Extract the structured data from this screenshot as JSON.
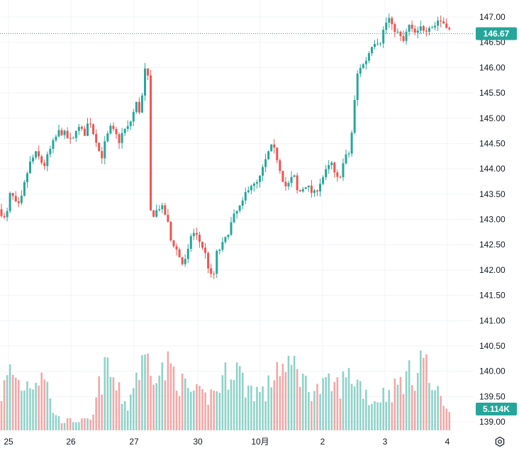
{
  "chart_data": {
    "type": "candlestick",
    "y_axis": {
      "ticks": [
        "147.00",
        "146.50",
        "146.00",
        "145.50",
        "145.00",
        "144.50",
        "144.00",
        "143.50",
        "143.00",
        "142.50",
        "142.00",
        "141.50",
        "141.00",
        "140.50",
        "140.00",
        "139.50",
        "139.00"
      ],
      "range": [
        138.92,
        147.25
      ]
    },
    "x_axis": {
      "ticks": [
        "25",
        "26",
        "27",
        "30",
        "10月",
        "2",
        "3",
        "4"
      ]
    },
    "last_price": {
      "label": "146.67",
      "value": 146.67,
      "color": "#26a69a"
    },
    "last_volume": {
      "label": "5.114K",
      "color": "#26a69a"
    },
    "colors": {
      "up": "#26a69a",
      "down": "#ef5350",
      "up_volume": "#8fd2c9",
      "down_volume": "#f3a7a6",
      "grid": "#f0f3fa"
    },
    "price_path": [
      [
        0,
        143.2
      ],
      [
        8,
        142.95
      ],
      [
        15,
        143.55
      ],
      [
        22,
        143.3
      ],
      [
        28,
        143.25
      ],
      [
        36,
        143.8
      ],
      [
        42,
        144.1
      ],
      [
        50,
        144.3
      ],
      [
        56,
        144.2
      ],
      [
        62,
        144.05
      ],
      [
        70,
        144.35
      ],
      [
        78,
        144.6
      ],
      [
        84,
        144.75
      ],
      [
        90,
        144.7
      ],
      [
        96,
        144.6
      ],
      [
        102,
        144.5
      ],
      [
        108,
        144.85
      ],
      [
        114,
        144.75
      ],
      [
        120,
        144.7
      ],
      [
        126,
        145.0
      ],
      [
        132,
        144.7
      ],
      [
        138,
        144.5
      ],
      [
        142,
        144.15
      ],
      [
        146,
        144.4
      ],
      [
        150,
        144.6
      ],
      [
        156,
        144.8
      ],
      [
        162,
        144.7
      ],
      [
        168,
        144.55
      ],
      [
        174,
        144.75
      ],
      [
        180,
        144.8
      ],
      [
        186,
        145.0
      ],
      [
        192,
        145.3
      ],
      [
        198,
        145.1
      ],
      [
        204,
        145.9
      ],
      [
        208,
        146.2
      ],
      [
        212,
        143.15
      ],
      [
        218,
        143.1
      ],
      [
        224,
        143.25
      ],
      [
        230,
        143.2
      ],
      [
        236,
        143.0
      ],
      [
        240,
        142.6
      ],
      [
        246,
        142.5
      ],
      [
        252,
        142.3
      ],
      [
        258,
        142.1
      ],
      [
        264,
        142.25
      ],
      [
        270,
        142.75
      ],
      [
        276,
        142.7
      ],
      [
        282,
        142.55
      ],
      [
        288,
        142.4
      ],
      [
        294,
        142.05
      ],
      [
        300,
        141.75
      ],
      [
        306,
        142.35
      ],
      [
        312,
        142.45
      ],
      [
        318,
        142.6
      ],
      [
        324,
        142.85
      ],
      [
        330,
        143.05
      ],
      [
        336,
        143.2
      ],
      [
        342,
        143.3
      ],
      [
        348,
        143.6
      ],
      [
        354,
        143.7
      ],
      [
        360,
        143.65
      ],
      [
        366,
        143.8
      ],
      [
        372,
        144.05
      ],
      [
        378,
        144.3
      ],
      [
        384,
        144.45
      ],
      [
        390,
        144.25
      ],
      [
        396,
        143.95
      ],
      [
        402,
        143.65
      ],
      [
        408,
        143.7
      ],
      [
        414,
        143.9
      ],
      [
        420,
        143.5
      ],
      [
        426,
        143.6
      ],
      [
        432,
        143.7
      ],
      [
        438,
        143.55
      ],
      [
        444,
        143.5
      ],
      [
        450,
        143.7
      ],
      [
        456,
        143.85
      ],
      [
        462,
        144.0
      ],
      [
        468,
        144.1
      ],
      [
        474,
        143.75
      ],
      [
        480,
        143.9
      ],
      [
        486,
        144.2
      ],
      [
        492,
        144.3
      ],
      [
        498,
        144.9
      ],
      [
        502,
        145.7
      ],
      [
        506,
        146.0
      ],
      [
        512,
        146.05
      ],
      [
        518,
        146.2
      ],
      [
        524,
        146.45
      ],
      [
        530,
        146.55
      ],
      [
        536,
        146.5
      ],
      [
        542,
        146.8
      ],
      [
        548,
        147.0
      ],
      [
        552,
        146.8
      ],
      [
        558,
        146.75
      ],
      [
        564,
        146.6
      ],
      [
        570,
        146.5
      ],
      [
        576,
        146.85
      ],
      [
        582,
        146.7
      ],
      [
        588,
        146.65
      ],
      [
        594,
        146.8
      ],
      [
        600,
        146.75
      ],
      [
        606,
        146.85
      ],
      [
        612,
        146.8
      ],
      [
        618,
        146.95
      ],
      [
        624,
        146.9
      ],
      [
        630,
        146.85
      ],
      [
        636,
        146.67
      ]
    ],
    "volume_profile": [
      [
        0,
        0.4
      ],
      [
        15,
        0.75
      ],
      [
        30,
        0.55
      ],
      [
        50,
        0.65
      ],
      [
        62,
        0.8
      ],
      [
        72,
        0.3
      ],
      [
        85,
        0.12
      ],
      [
        110,
        0.12
      ],
      [
        130,
        0.12
      ],
      [
        140,
        0.55
      ],
      [
        152,
        0.8
      ],
      [
        165,
        0.5
      ],
      [
        180,
        0.3
      ],
      [
        192,
        0.7
      ],
      [
        210,
        0.92
      ],
      [
        225,
        0.7
      ],
      [
        240,
        0.8
      ],
      [
        258,
        0.55
      ],
      [
        275,
        0.45
      ],
      [
        290,
        0.4
      ],
      [
        305,
        0.5
      ],
      [
        320,
        0.7
      ],
      [
        332,
        0.85
      ],
      [
        345,
        0.55
      ],
      [
        360,
        0.5
      ],
      [
        375,
        0.45
      ],
      [
        392,
        0.85
      ],
      [
        405,
        0.7
      ],
      [
        418,
        0.85
      ],
      [
        432,
        0.55
      ],
      [
        448,
        0.5
      ],
      [
        462,
        0.55
      ],
      [
        478,
        0.55
      ],
      [
        495,
        0.7
      ],
      [
        510,
        0.55
      ],
      [
        525,
        0.35
      ],
      [
        540,
        0.45
      ],
      [
        555,
        0.5
      ],
      [
        570,
        0.65
      ],
      [
        585,
        0.7
      ],
      [
        596,
        1.0
      ],
      [
        606,
        0.6
      ],
      [
        616,
        0.45
      ],
      [
        626,
        0.35
      ],
      [
        636,
        0.28
      ]
    ]
  }
}
